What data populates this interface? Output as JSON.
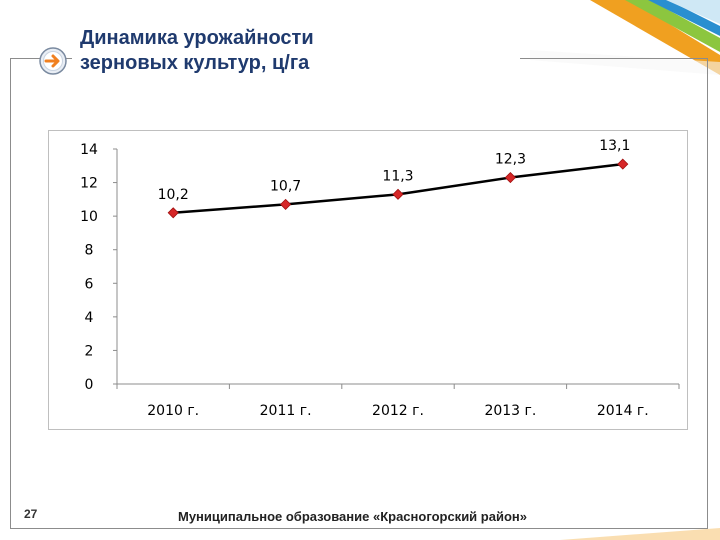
{
  "slide": {
    "title_line1": "Динамика урожайности",
    "title_line2": "зерновых культур, ц/га",
    "page_number": "27",
    "footer": "Муниципальное образование «Красногорский район»",
    "colors": {
      "title": "#1f3a6e",
      "accent_orange": "#f0a020",
      "accent_green": "#8cc63f",
      "accent_blue": "#2a8fd0"
    }
  },
  "chart_data": {
    "type": "line",
    "categories": [
      "2010 г.",
      "2011 г.",
      "2012 г.",
      "2013 г.",
      "2014 г."
    ],
    "values": [
      10.2,
      10.7,
      11.3,
      12.3,
      13.1
    ],
    "data_labels": [
      "10,2",
      "10,7",
      "11,3",
      "12,3",
      "13,1"
    ],
    "y_ticks": [
      "0",
      "2",
      "4",
      "6",
      "8",
      "10",
      "12",
      "14"
    ],
    "ylim": [
      0,
      14
    ],
    "grid": false,
    "line_color": "#000000",
    "marker_color": "#d62728",
    "marker": "diamond"
  }
}
